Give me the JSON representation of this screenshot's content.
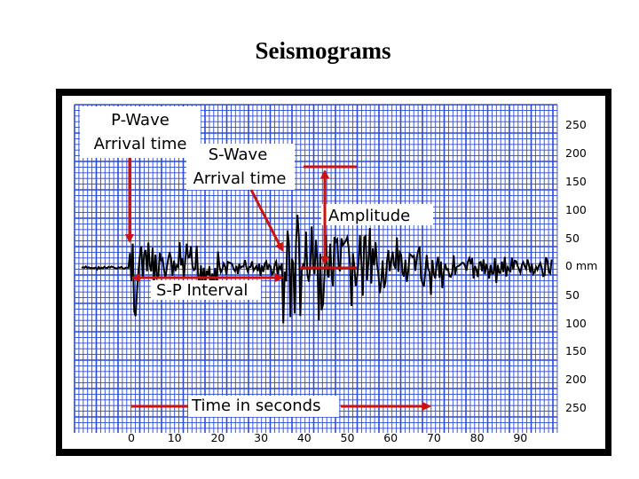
{
  "title": "Seismograms",
  "labels": {
    "p_wave_line1": "P-Wave",
    "p_wave_line2": "Arrival time",
    "s_wave_line1": "S-Wave",
    "s_wave_line2": "Arrival time",
    "amplitude": "Amplitude",
    "sp_interval": "S-P Interval",
    "time": "Time in seconds"
  },
  "amplitude_scale": {
    "ticks": [
      "250",
      "200",
      "150",
      "100",
      "50",
      "0 mm",
      "50",
      "100",
      "150",
      "200",
      "250"
    ]
  },
  "time_axis": {
    "ticks": [
      "0",
      "10",
      "20",
      "30",
      "40",
      "50",
      "60",
      "70",
      "80",
      "90"
    ]
  },
  "colors": {
    "grid": "#2a49d8",
    "background": "#ffffff",
    "arrow": "#cc1111",
    "frame": "#000000",
    "trace": "#000000"
  }
}
